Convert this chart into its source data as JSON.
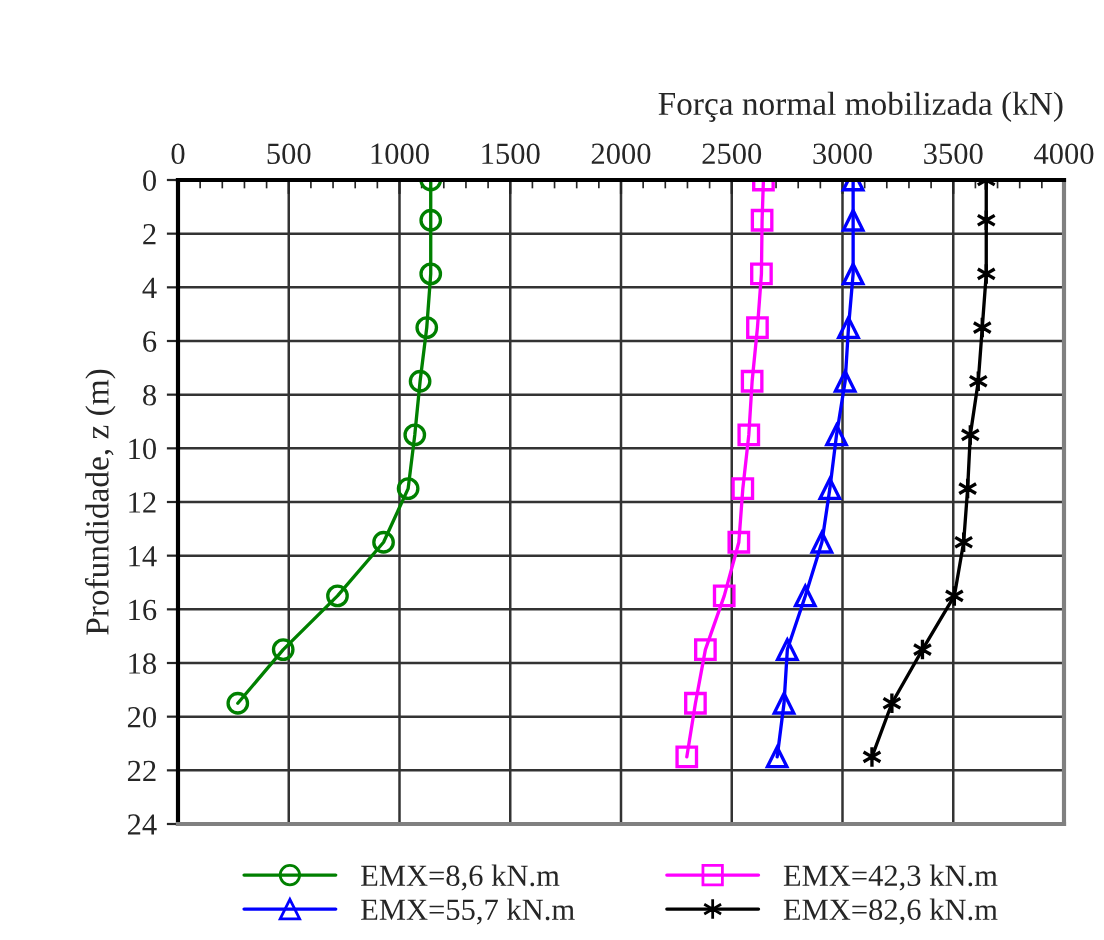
{
  "chart_data": {
    "type": "line",
    "xlabel": "Força normal mobilizada (kN)",
    "ylabel": "Profundidade, z (m)",
    "xlim": [
      0,
      4000
    ],
    "xticks": [
      0,
      500,
      1000,
      1500,
      2000,
      2500,
      3000,
      3500,
      4000
    ],
    "ylim": [
      24,
      0
    ],
    "yticks": [
      0,
      2,
      4,
      6,
      8,
      10,
      12,
      14,
      16,
      18,
      20,
      22,
      24
    ],
    "grid": true,
    "legend": "bottom",
    "line_style": "solid",
    "series": [
      {
        "name": "EMX=8,6 kN.m",
        "color": "#008000",
        "marker": "circle",
        "x": [
          1141,
          1141,
          1141,
          1123,
          1093,
          1069,
          1039,
          928,
          720,
          475,
          270
        ],
        "values": [
          0,
          1.5,
          3.5,
          5.5,
          7.5,
          9.5,
          11.5,
          13.5,
          15.5,
          17.5,
          19.5
        ]
      },
      {
        "name": "EMX=42,3 kN.m",
        "color": "#ff00ff",
        "marker": "square",
        "x": [
          2643,
          2637,
          2634,
          2616,
          2592,
          2577,
          2550,
          2532,
          2466,
          2381,
          2336,
          2297
        ],
        "values": [
          0,
          1.5,
          3.5,
          5.5,
          7.5,
          9.5,
          11.5,
          13.5,
          15.5,
          17.5,
          19.5,
          21.5
        ]
      },
      {
        "name": "EMX=55,7 kN.m",
        "color": "#0000ff",
        "marker": "triangle",
        "x": [
          3048,
          3048,
          3048,
          3027,
          3012,
          2973,
          2943,
          2907,
          2832,
          2751,
          2736,
          2705
        ],
        "values": [
          0,
          1.5,
          3.5,
          5.5,
          7.5,
          9.5,
          11.5,
          13.5,
          15.5,
          17.5,
          19.5,
          21.5
        ]
      },
      {
        "name": "EMX=82,6 kN.m",
        "color": "#000000",
        "marker": "cross",
        "x": [
          3649,
          3649,
          3649,
          3631,
          3613,
          3577,
          3565,
          3547,
          3505,
          3361,
          3223,
          3133
        ],
        "values": [
          0,
          1.5,
          3.5,
          5.5,
          7.5,
          9.5,
          11.5,
          13.5,
          15.5,
          17.5,
          19.5,
          21.5
        ]
      }
    ]
  }
}
